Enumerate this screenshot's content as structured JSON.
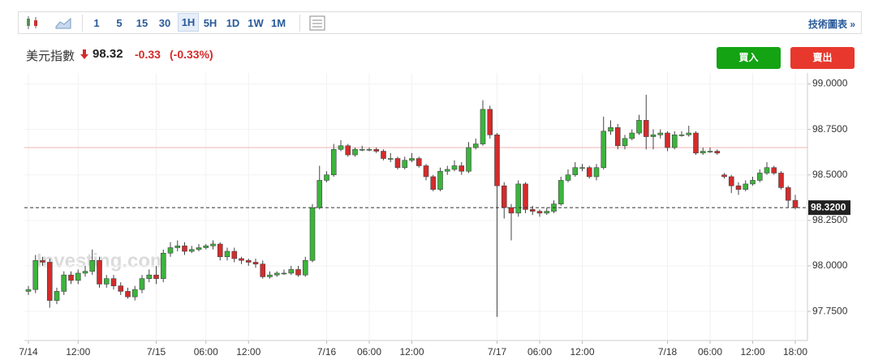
{
  "toolbar": {
    "intervals": [
      "1",
      "5",
      "15",
      "30",
      "1H",
      "5H",
      "1D",
      "1W",
      "1M"
    ],
    "link": "技術圖表 »"
  },
  "header": {
    "name": "美元指數",
    "price": "98.32",
    "change": "-0.33",
    "change_pct": "(-0.33%)"
  },
  "buttons": {
    "buy": "買入",
    "sell": "賣出"
  },
  "watermark": "Investing.com",
  "chart_data": {
    "type": "candlestick",
    "up_color": "#3cb43c",
    "down_color": "#d42b2b",
    "categories": [
      "7/14",
      null,
      null,
      null,
      null,
      null,
      null,
      "12:00",
      null,
      null,
      null,
      null,
      null,
      null,
      null,
      null,
      null,
      null,
      "7/15",
      null,
      null,
      null,
      null,
      null,
      null,
      "06:00",
      null,
      null,
      null,
      null,
      null,
      "12:00",
      null,
      null,
      null,
      null,
      null,
      null,
      null,
      null,
      null,
      null,
      "7/16",
      null,
      null,
      null,
      null,
      null,
      "06:00",
      null,
      null,
      null,
      null,
      null,
      "12:00",
      null,
      null,
      null,
      null,
      null,
      null,
      null,
      null,
      null,
      null,
      null,
      "7/17",
      null,
      null,
      null,
      null,
      null,
      "06:00",
      null,
      null,
      null,
      null,
      null,
      "12:00",
      null,
      null,
      null,
      null,
      null,
      null,
      null,
      null,
      null,
      null,
      null,
      "7/18",
      null,
      null,
      null,
      null,
      null,
      "06:00",
      null,
      null,
      null,
      null,
      null,
      "12:00",
      null,
      null,
      null,
      null,
      null,
      "18:00"
    ],
    "open": [
      97.86,
      97.87,
      98.03,
      98.02,
      97.81,
      97.86,
      97.95,
      97.92,
      97.96,
      97.97,
      98.03,
      97.9,
      97.93,
      97.89,
      97.86,
      97.83,
      97.87,
      97.93,
      97.95,
      97.93,
      98.07,
      98.1,
      98.11,
      98.08,
      98.09,
      98.1,
      98.11,
      98.12,
      98.05,
      98.08,
      98.04,
      98.03,
      98.02,
      98.01,
      97.94,
      97.95,
      97.96,
      97.96,
      97.98,
      97.95,
      98.03,
      98.32,
      98.47,
      98.5,
      98.64,
      98.66,
      98.61,
      98.64,
      98.64,
      98.64,
      98.63,
      98.59,
      98.59,
      98.54,
      98.58,
      98.59,
      98.55,
      98.49,
      98.42,
      98.52,
      98.53,
      98.55,
      98.52,
      98.65,
      98.67,
      98.86,
      98.72,
      98.44,
      98.32,
      98.29,
      98.45,
      98.31,
      98.3,
      98.29,
      98.3,
      98.34,
      98.47,
      98.5,
      98.54,
      98.54,
      98.49,
      98.54,
      98.74,
      98.76,
      98.66,
      98.7,
      98.73,
      98.8,
      98.71,
      98.72,
      98.73,
      98.65,
      98.72,
      98.72,
      98.73,
      98.62,
      98.63,
      98.63,
      98.5,
      98.49,
      98.44,
      98.42,
      98.45,
      98.47,
      98.51,
      98.54,
      98.51,
      98.43,
      98.36
    ],
    "high": [
      97.89,
      98.06,
      98.05,
      98.04,
      97.88,
      97.97,
      97.97,
      97.98,
      98.0,
      98.09,
      98.05,
      97.95,
      97.95,
      97.91,
      97.88,
      97.89,
      97.95,
      97.98,
      98.0,
      98.09,
      98.13,
      98.14,
      98.13,
      98.11,
      98.12,
      98.12,
      98.14,
      98.13,
      98.1,
      98.1,
      98.05,
      98.04,
      98.04,
      98.03,
      97.97,
      97.97,
      97.98,
      98.0,
      98.0,
      98.05,
      98.34,
      98.55,
      98.52,
      98.67,
      98.69,
      98.67,
      98.65,
      98.66,
      98.65,
      98.65,
      98.64,
      98.62,
      98.6,
      98.6,
      98.62,
      98.6,
      98.56,
      98.5,
      98.54,
      98.55,
      98.58,
      98.57,
      98.68,
      98.7,
      98.91,
      98.88,
      98.73,
      98.46,
      98.34,
      98.47,
      98.46,
      98.33,
      98.31,
      98.32,
      98.36,
      98.49,
      98.53,
      98.57,
      98.56,
      98.55,
      98.56,
      98.82,
      98.8,
      98.78,
      98.72,
      98.75,
      98.83,
      98.94,
      98.75,
      98.75,
      98.74,
      98.74,
      98.74,
      98.77,
      98.74,
      98.65,
      98.65,
      98.64,
      98.51,
      98.5,
      98.46,
      98.47,
      98.49,
      98.53,
      98.57,
      98.55,
      98.52,
      98.44,
      98.39
    ],
    "low": [
      97.84,
      97.85,
      98.0,
      97.77,
      97.79,
      97.84,
      97.9,
      97.9,
      97.94,
      97.95,
      97.88,
      97.88,
      97.87,
      97.84,
      97.82,
      97.81,
      97.85,
      97.91,
      97.9,
      97.91,
      98.05,
      98.08,
      98.06,
      98.07,
      98.08,
      98.09,
      98.09,
      98.03,
      98.03,
      98.02,
      98.01,
      98.0,
      97.99,
      97.93,
      97.93,
      97.94,
      97.95,
      97.95,
      97.94,
      97.94,
      98.02,
      98.31,
      98.46,
      98.49,
      98.63,
      98.6,
      98.6,
      98.63,
      98.63,
      98.62,
      98.58,
      98.57,
      98.53,
      98.53,
      98.57,
      98.54,
      98.47,
      98.41,
      98.41,
      98.5,
      98.52,
      98.5,
      98.51,
      98.64,
      98.66,
      98.7,
      97.72,
      98.26,
      98.14,
      98.27,
      98.29,
      98.28,
      98.27,
      98.28,
      98.29,
      98.33,
      98.46,
      98.49,
      98.52,
      98.48,
      98.47,
      98.53,
      98.72,
      98.64,
      98.64,
      98.69,
      98.72,
      98.64,
      98.64,
      98.7,
      98.63,
      98.64,
      98.71,
      98.71,
      98.61,
      98.61,
      98.62,
      98.61,
      98.48,
      98.4,
      98.39,
      98.41,
      98.44,
      98.46,
      98.5,
      98.5,
      98.42,
      98.32,
      98.31
    ],
    "close": [
      97.87,
      98.03,
      98.02,
      97.81,
      97.86,
      97.95,
      97.92,
      97.96,
      97.97,
      98.03,
      97.9,
      97.93,
      97.89,
      97.86,
      97.83,
      97.87,
      97.93,
      97.95,
      97.93,
      98.07,
      98.1,
      98.11,
      98.08,
      98.09,
      98.1,
      98.11,
      98.12,
      98.05,
      98.08,
      98.04,
      98.03,
      98.02,
      98.01,
      97.94,
      97.95,
      97.96,
      97.96,
      97.98,
      97.95,
      98.03,
      98.32,
      98.47,
      98.5,
      98.64,
      98.66,
      98.61,
      98.64,
      98.64,
      98.64,
      98.63,
      98.59,
      98.59,
      98.54,
      98.58,
      98.59,
      98.55,
      98.49,
      98.42,
      98.52,
      98.53,
      98.55,
      98.52,
      98.65,
      98.67,
      98.86,
      98.72,
      98.44,
      98.32,
      98.29,
      98.45,
      98.31,
      98.3,
      98.29,
      98.3,
      98.34,
      98.47,
      98.5,
      98.54,
      98.54,
      98.49,
      98.54,
      98.74,
      98.76,
      98.66,
      98.7,
      98.73,
      98.8,
      98.71,
      98.72,
      98.73,
      98.65,
      98.72,
      98.72,
      98.73,
      98.62,
      98.63,
      98.63,
      98.62,
      98.49,
      98.44,
      98.42,
      98.45,
      98.47,
      98.51,
      98.54,
      98.51,
      98.43,
      98.36,
      98.32
    ],
    "ylim": [
      97.59,
      99.06
    ],
    "yticks": [
      {
        "value": 97.75,
        "label": "97.7500"
      },
      {
        "value": 98,
        "label": "98.0000"
      },
      {
        "value": 98.25,
        "label": "98.2500"
      },
      {
        "value": 98.5,
        "label": "98.5000"
      },
      {
        "value": 98.75,
        "label": "98.7500"
      },
      {
        "value": 99,
        "label": "99.0000"
      }
    ],
    "price_line": {
      "value": 98.32,
      "label": "98.3200"
    },
    "level_line": {
      "value": 98.65,
      "color": "#f2b4b4"
    }
  }
}
